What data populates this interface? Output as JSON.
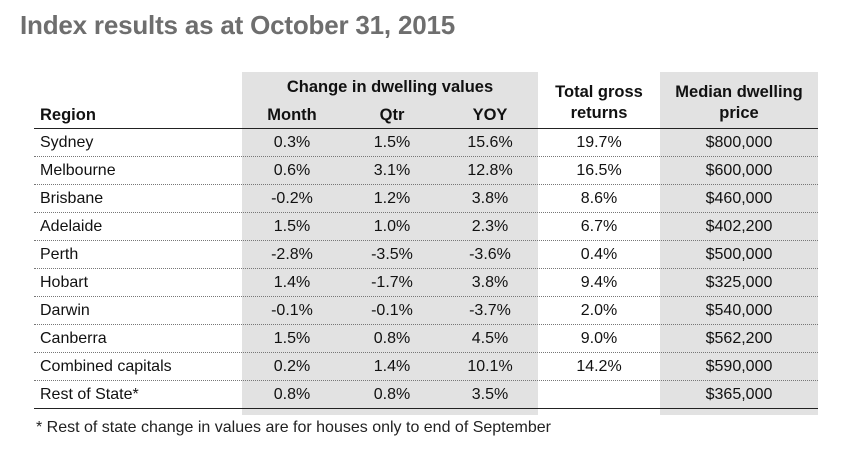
{
  "title": "Index results as at October 31, 2015",
  "table": {
    "group_header": "Change in dwelling values",
    "columns": {
      "region": "Region",
      "month": "Month",
      "qtr": "Qtr",
      "yoy": "YOY",
      "gross_line1": "Total gross",
      "gross_line2": "returns",
      "median_line1": "Median dwelling",
      "median_line2": "price"
    },
    "rows": [
      {
        "region": "Sydney",
        "month": "0.3%",
        "qtr": "1.5%",
        "yoy": "15.6%",
        "gross": "19.7%",
        "median": "$800,000"
      },
      {
        "region": "Melbourne",
        "month": "0.6%",
        "qtr": "3.1%",
        "yoy": "12.8%",
        "gross": "16.5%",
        "median": "$600,000"
      },
      {
        "region": "Brisbane",
        "month": "-0.2%",
        "qtr": "1.2%",
        "yoy": "3.8%",
        "gross": "8.6%",
        "median": "$460,000"
      },
      {
        "region": "Adelaide",
        "month": "1.5%",
        "qtr": "1.0%",
        "yoy": "2.3%",
        "gross": "6.7%",
        "median": "$402,200"
      },
      {
        "region": "Perth",
        "month": "-2.8%",
        "qtr": "-3.5%",
        "yoy": "-3.6%",
        "gross": "0.4%",
        "median": "$500,000"
      },
      {
        "region": "Hobart",
        "month": "1.4%",
        "qtr": "-1.7%",
        "yoy": "3.8%",
        "gross": "9.4%",
        "median": "$325,000"
      },
      {
        "region": "Darwin",
        "month": "-0.1%",
        "qtr": "-0.1%",
        "yoy": "-3.7%",
        "gross": "2.0%",
        "median": "$540,000"
      },
      {
        "region": "Canberra",
        "month": "1.5%",
        "qtr": "0.8%",
        "yoy": "4.5%",
        "gross": "9.0%",
        "median": "$562,200"
      },
      {
        "region": "Combined capitals",
        "month": "0.2%",
        "qtr": "1.4%",
        "yoy": "10.1%",
        "gross": "14.2%",
        "median": "$590,000"
      },
      {
        "region": "Rest of State*",
        "month": "0.8%",
        "qtr": "0.8%",
        "yoy": "3.5%",
        "gross": "",
        "median": "$365,000"
      }
    ]
  },
  "footnote": "* Rest of state change in values are for houses only to end of September",
  "colors": {
    "title": "#6e6e6e",
    "shade": "#e2e2e2"
  }
}
